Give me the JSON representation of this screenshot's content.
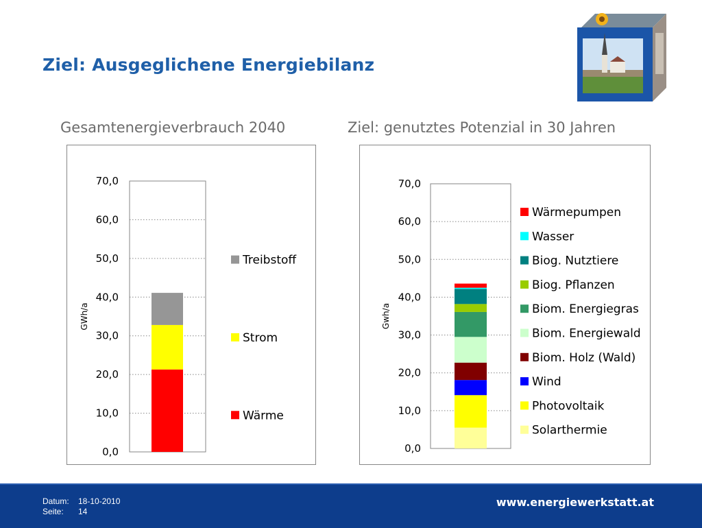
{
  "page": {
    "title": "Ziel: Ausgeglichene Energiebilanz",
    "left_heading": "Gesamtenergieverbrauch 2040",
    "right_heading": "Ziel: genutztes Potenzial in 30 Jahren"
  },
  "footer": {
    "date_label": "Datum:",
    "date_value": "18-10-2010",
    "page_label": "Seite:",
    "page_value": "14",
    "url": "www.energiewerkstatt.at",
    "background": "#0d3d8c"
  },
  "chart_data": [
    {
      "type": "bar",
      "stacked": true,
      "ylabel": "GWh/a",
      "ylim": [
        0,
        70
      ],
      "yticks": [
        "0,0",
        "10,0",
        "20,0",
        "30,0",
        "40,0",
        "50,0",
        "60,0",
        "70,0"
      ],
      "grid": true,
      "legend": "right",
      "series": [
        {
          "name": "Wärme",
          "value": 21.3,
          "color": "#ff0000"
        },
        {
          "name": "Strom",
          "value": 11.5,
          "color": "#ffff00"
        },
        {
          "name": "Treibstoff",
          "value": 8.3,
          "color": "#969696"
        }
      ]
    },
    {
      "type": "bar",
      "stacked": true,
      "ylabel": "Gwh/a",
      "ylim": [
        0,
        70
      ],
      "yticks": [
        "0,0",
        "10,0",
        "20,0",
        "30,0",
        "40,0",
        "50,0",
        "60,0",
        "70,0"
      ],
      "grid": true,
      "legend": "right",
      "series": [
        {
          "name": "Solarthermie",
          "value": 5.5,
          "color": "#ffff99"
        },
        {
          "name": "Photovoltaik",
          "value": 8.6,
          "color": "#ffff00"
        },
        {
          "name": "Wind",
          "value": 4.0,
          "color": "#0000ff"
        },
        {
          "name": "Biom. Holz (Wald)",
          "value": 4.6,
          "color": "#800000"
        },
        {
          "name": "Biom. Energiewald",
          "value": 6.8,
          "color": "#ccffcc"
        },
        {
          "name": "Biom. Energiegras",
          "value": 6.6,
          "color": "#339966"
        },
        {
          "name": "Biog. Pflanzen",
          "value": 2.1,
          "color": "#99cc00"
        },
        {
          "name": "Biog. Nutztiere",
          "value": 4.0,
          "color": "#008080"
        },
        {
          "name": "Wasser",
          "value": 0.3,
          "color": "#00ffff"
        },
        {
          "name": "Wärmepumpen",
          "value": 1.1,
          "color": "#ff0000"
        }
      ]
    }
  ]
}
